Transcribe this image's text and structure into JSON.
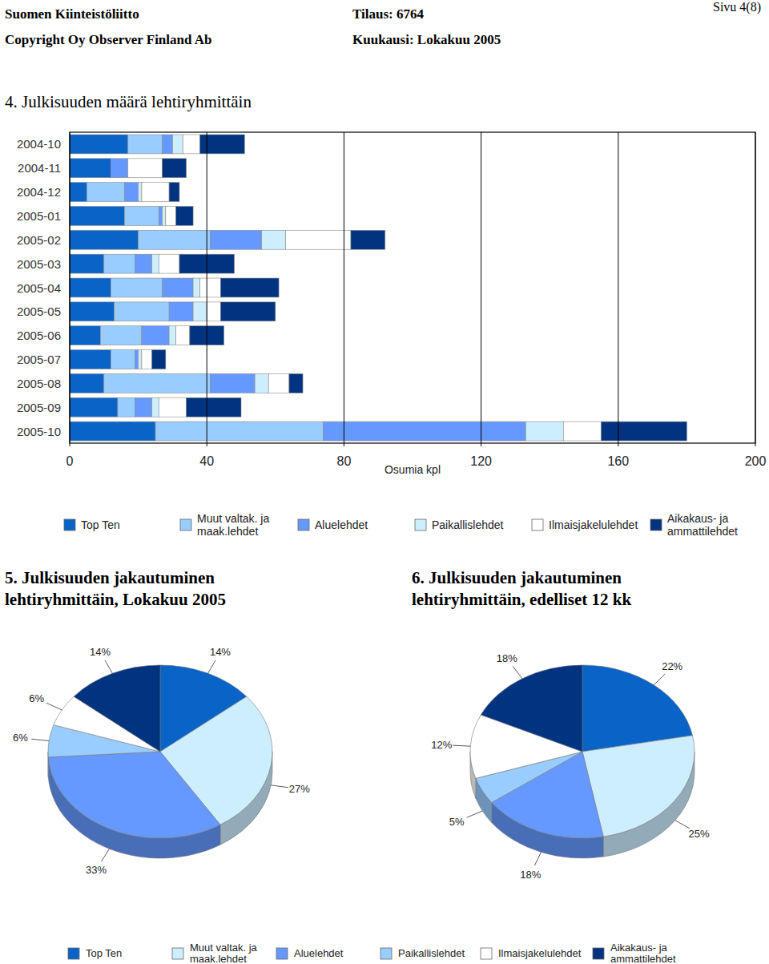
{
  "header": {
    "organization": "Suomen Kiinteistöliitto",
    "order": "Tilaus: 6764",
    "page": "Sivu 4(8)",
    "copyright": "Copyright Oy Observer Finland Ab",
    "month": "Kuukausi: Lokakuu 2005"
  },
  "chart_data": [
    {
      "type": "bar",
      "orientation": "horizontal",
      "stacked": true,
      "grid": true,
      "legend": "bottom",
      "title": "4. Julkisuuden määrä lehtiryhmittäin",
      "xlabel": "Osumia kpl",
      "xlim": [
        0,
        200
      ],
      "xticks": [
        0,
        40,
        80,
        120,
        160,
        200
      ],
      "categories": [
        "2004-10",
        "2004-11",
        "2004-12",
        "2005-01",
        "2005-02",
        "2005-03",
        "2005-04",
        "2005-05",
        "2005-06",
        "2005-07",
        "2005-08",
        "2005-09",
        "2005-10"
      ],
      "series": [
        {
          "name": "Top Ten",
          "color": "#0a64c8",
          "values": [
            17,
            12,
            5,
            16,
            20,
            10,
            12,
            13,
            9,
            12,
            10,
            14,
            25
          ]
        },
        {
          "name": "Muut valtak. ja maak.lehdet",
          "color": "#99ccff",
          "values": [
            10,
            0,
            11,
            10,
            21,
            9,
            15,
            16,
            12,
            7,
            31,
            5,
            49
          ]
        },
        {
          "name": "Aluelehdet",
          "color": "#6699ff",
          "values": [
            3,
            5,
            4,
            1,
            15,
            5,
            9,
            7,
            8,
            1,
            13,
            5,
            59
          ]
        },
        {
          "name": "Paikallislehdet",
          "color": "#cceeff",
          "values": [
            3,
            0,
            1,
            1,
            7,
            2,
            2,
            4,
            2,
            1,
            4,
            2,
            11
          ]
        },
        {
          "name": "Ilmaisjakelulehdet",
          "color": "#ffffff",
          "values": [
            5,
            10,
            8,
            3,
            19,
            6,
            6,
            4,
            4,
            3,
            6,
            8,
            11
          ]
        },
        {
          "name": "Aikakaus- ja ammattilehdet",
          "color": "#003380",
          "values": [
            13,
            7,
            3,
            5,
            10,
            16,
            17,
            16,
            10,
            4,
            4,
            16,
            25
          ]
        }
      ]
    },
    {
      "type": "pie",
      "title": "5. Julkisuuden jakautuminen lehtiryhmittäin, Lokakuu 2005",
      "legend": "bottom",
      "data_labels": true,
      "categories": [
        "Top Ten",
        "Muut valtak. ja maak.lehdet",
        "Aluelehdet",
        "Paikallislehdet",
        "Ilmaisjakelulehdet",
        "Aikakaus- ja ammattilehdet"
      ],
      "values": [
        14,
        27,
        33,
        6,
        6,
        14
      ],
      "value_labels": [
        "14%",
        "27%",
        "33%",
        "6%",
        "6%",
        "14%"
      ],
      "colors": [
        "#0a64c8",
        "#cceeff",
        "#6699ff",
        "#99ccff",
        "#ffffff",
        "#003380"
      ]
    },
    {
      "type": "pie",
      "title": "6. Julkisuuden jakautuminen lehtiryhmittäin, edelliset 12 kk",
      "data_labels": true,
      "categories": [
        "Top Ten",
        "Muut valtak. ja maak.lehdet",
        "Aluelehdet",
        "Paikallislehdet",
        "Ilmaisjakelulehdet",
        "Aikakaus- ja ammattilehdet"
      ],
      "values": [
        22,
        25,
        18,
        5,
        12,
        18
      ],
      "value_labels": [
        "22%",
        "25%",
        "18%",
        "5%",
        "12%",
        "18%"
      ],
      "colors": [
        "#0a64c8",
        "#cceeff",
        "#6699ff",
        "#99ccff",
        "#ffffff",
        "#003380"
      ]
    }
  ]
}
